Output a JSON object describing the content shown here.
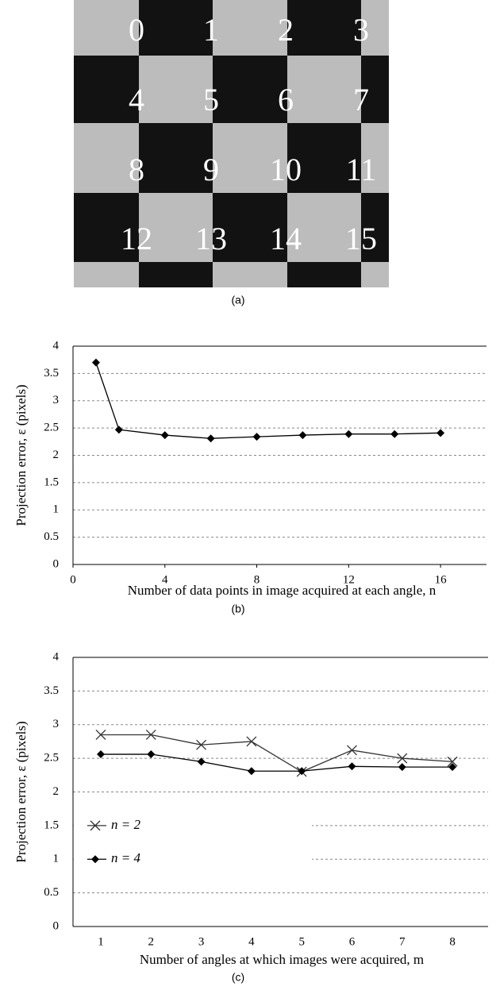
{
  "figure_a": {
    "labels": [
      "0",
      "1",
      "2",
      "3",
      "4",
      "5",
      "6",
      "7",
      "8",
      "9",
      "10",
      "11",
      "12",
      "13",
      "14",
      "15"
    ],
    "caption": "(a)"
  },
  "chart_data": [
    {
      "type": "line",
      "caption": "(b)",
      "xlabel": "Number of data points in image acquired at each angle, n",
      "ylabel": "Projection error, ε (pixels)",
      "x": [
        1,
        2,
        4,
        6,
        8,
        10,
        12,
        14,
        16
      ],
      "values": [
        3.7,
        2.47,
        2.37,
        2.31,
        2.34,
        2.37,
        2.39,
        2.39,
        2.41
      ],
      "color": "#000",
      "marker": "diamond",
      "xlim": [
        0,
        18
      ],
      "xticks": [
        0,
        4,
        8,
        12,
        16
      ],
      "ylim": [
        0,
        4
      ],
      "yticks": [
        0,
        0.5,
        1,
        1.5,
        2,
        2.5,
        3,
        3.5,
        4
      ],
      "grid": true
    },
    {
      "type": "line",
      "caption": "(c)",
      "xlabel": "Number of angles at which images were acquired, m",
      "ylabel": "Projection error, ε (pixels)",
      "categories": [
        "1",
        "2",
        "3",
        "4",
        "5",
        "6",
        "7",
        "8"
      ],
      "series": [
        {
          "name": "n = 2",
          "color": "#333",
          "marker": "x",
          "values": [
            2.85,
            2.85,
            2.7,
            2.75,
            2.3,
            2.62,
            2.5,
            2.45
          ]
        },
        {
          "name": "n = 4",
          "color": "#000",
          "marker": "diamond",
          "values": [
            2.56,
            2.56,
            2.45,
            2.31,
            2.31,
            2.38,
            2.37,
            2.37
          ]
        }
      ],
      "ylim": [
        0,
        4
      ],
      "yticks": [
        0,
        0.5,
        1,
        1.5,
        2,
        2.5,
        3,
        3.5,
        4
      ],
      "grid": true,
      "legend": "left"
    }
  ]
}
